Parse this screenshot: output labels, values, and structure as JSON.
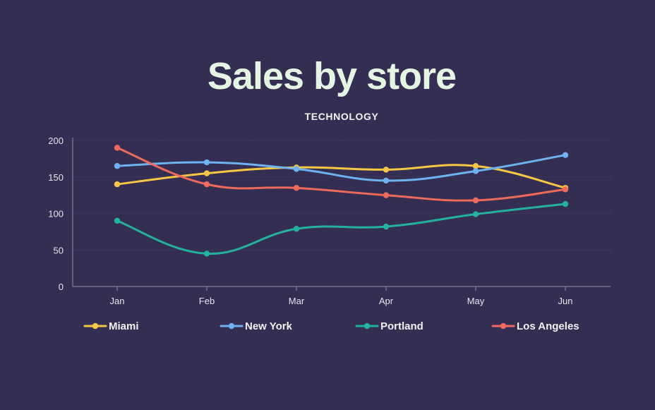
{
  "colors": {
    "background": "#332e52",
    "grid": "#3b3660",
    "axis": "#8f8ca8"
  },
  "chart_data": {
    "type": "line",
    "title": "Sales by store",
    "subtitle": "TECHNOLOGY",
    "xlabel": "",
    "ylabel": "",
    "categories": [
      "Jan",
      "Feb",
      "Mar",
      "Apr",
      "May",
      "Jun"
    ],
    "ylim": [
      0,
      200
    ],
    "yticks": [
      0,
      50,
      100,
      150,
      200
    ],
    "grid": true,
    "legend_position": "bottom",
    "series": [
      {
        "name": "Miami",
        "color": "#f6c744",
        "values": [
          140,
          155,
          163,
          160,
          165,
          135
        ]
      },
      {
        "name": "New York",
        "color": "#6fb2f2",
        "values": [
          165,
          170,
          161,
          145,
          158,
          180
        ]
      },
      {
        "name": "Portland",
        "color": "#22b3a0",
        "values": [
          90,
          45,
          79,
          82,
          99,
          113
        ]
      },
      {
        "name": "Los Angeles",
        "color": "#ee6b5b",
        "values": [
          190,
          140,
          135,
          125,
          118,
          133
        ]
      }
    ]
  }
}
